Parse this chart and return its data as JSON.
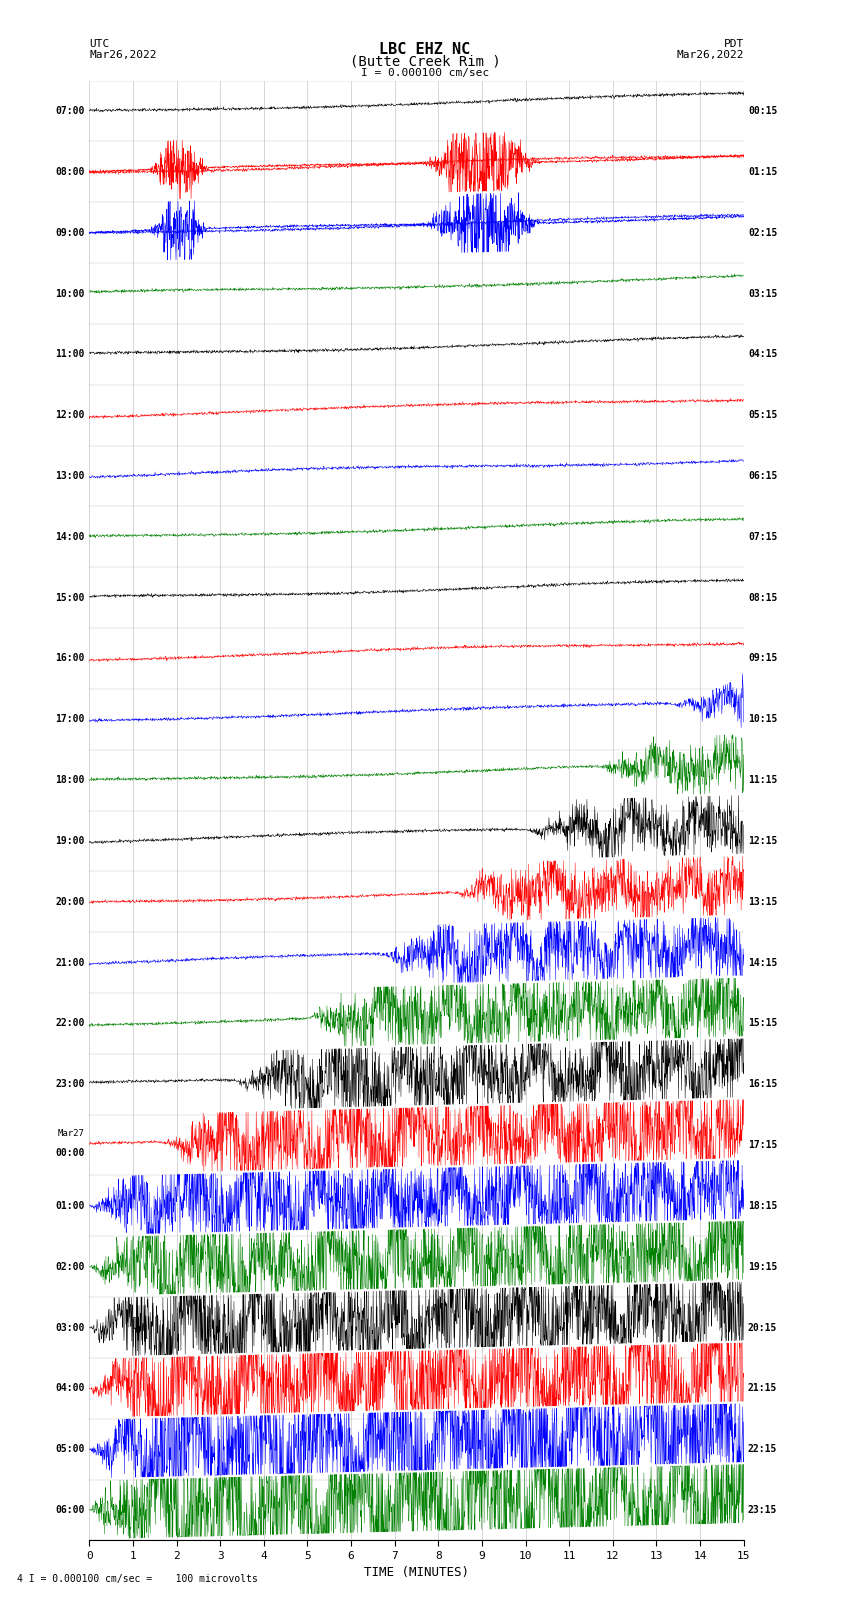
{
  "title_line1": "LBC EHZ NC",
  "title_line2": "(Butte Creek Rim )",
  "scale_text": "I = 0.000100 cm/sec",
  "bottom_note": "4 I = 0.000100 cm/sec =    100 microvolts",
  "xlabel": "TIME (MINUTES)",
  "xlim": [
    0,
    15
  ],
  "xticks": [
    0,
    1,
    2,
    3,
    4,
    5,
    6,
    7,
    8,
    9,
    10,
    11,
    12,
    13,
    14,
    15
  ],
  "utc_times": [
    "07:00",
    "08:00",
    "09:00",
    "10:00",
    "11:00",
    "12:00",
    "13:00",
    "14:00",
    "15:00",
    "16:00",
    "17:00",
    "18:00",
    "19:00",
    "20:00",
    "21:00",
    "22:00",
    "23:00",
    "Mar27\n00:00",
    "01:00",
    "02:00",
    "03:00",
    "04:00",
    "05:00",
    "06:00"
  ],
  "pdt_times": [
    "00:15",
    "01:15",
    "02:15",
    "03:15",
    "04:15",
    "05:15",
    "06:15",
    "07:15",
    "08:15",
    "09:15",
    "10:15",
    "11:15",
    "12:15",
    "13:15",
    "14:15",
    "15:15",
    "16:15",
    "17:15",
    "18:15",
    "19:15",
    "20:15",
    "21:15",
    "22:15",
    "23:15"
  ],
  "n_traces": 24,
  "bg_color": "white",
  "line_color_black": "#000000",
  "line_color_red": "#ff0000",
  "line_color_blue": "#0000ff",
  "line_color_green": "#008000",
  "colors_cycle": [
    "#000000",
    "#ff0000",
    "#0000ff",
    "#008000"
  ]
}
